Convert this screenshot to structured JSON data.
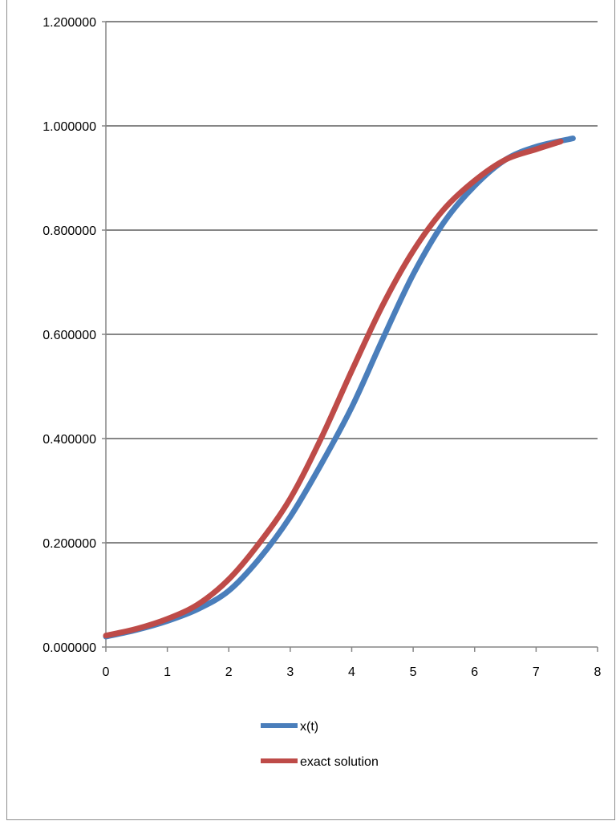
{
  "chart_data": {
    "type": "line",
    "title": "",
    "xlabel": "",
    "ylabel": "",
    "xlim": [
      0,
      8
    ],
    "ylim": [
      0,
      1.2
    ],
    "x_ticks": [
      "0",
      "1",
      "2",
      "3",
      "4",
      "5",
      "6",
      "7",
      "8"
    ],
    "y_ticks": [
      "0.000000",
      "0.200000",
      "0.400000",
      "0.600000",
      "0.800000",
      "1.000000",
      "1.200000"
    ],
    "grid": "horizontal",
    "legend_position": "bottom",
    "series": [
      {
        "name": "x(t)",
        "color": "#4a7ebb",
        "points": [
          [
            0.0,
            0.02
          ],
          [
            0.5,
            0.033
          ],
          [
            1.0,
            0.05
          ],
          [
            1.5,
            0.073
          ],
          [
            2.0,
            0.108
          ],
          [
            2.5,
            0.17
          ],
          [
            3.0,
            0.25
          ],
          [
            3.5,
            0.35
          ],
          [
            4.0,
            0.46
          ],
          [
            4.5,
            0.59
          ],
          [
            5.0,
            0.715
          ],
          [
            5.5,
            0.815
          ],
          [
            6.0,
            0.885
          ],
          [
            6.5,
            0.935
          ],
          [
            7.0,
            0.96
          ],
          [
            7.6,
            0.976
          ]
        ]
      },
      {
        "name": "exact solution",
        "color": "#be4b48",
        "points": [
          [
            0.0,
            0.022
          ],
          [
            0.5,
            0.035
          ],
          [
            1.0,
            0.054
          ],
          [
            1.5,
            0.082
          ],
          [
            2.0,
            0.13
          ],
          [
            2.5,
            0.2
          ],
          [
            3.0,
            0.285
          ],
          [
            3.5,
            0.4
          ],
          [
            4.0,
            0.53
          ],
          [
            4.5,
            0.655
          ],
          [
            5.0,
            0.76
          ],
          [
            5.5,
            0.84
          ],
          [
            6.0,
            0.895
          ],
          [
            6.5,
            0.935
          ],
          [
            7.0,
            0.955
          ],
          [
            7.4,
            0.97
          ]
        ]
      }
    ]
  }
}
